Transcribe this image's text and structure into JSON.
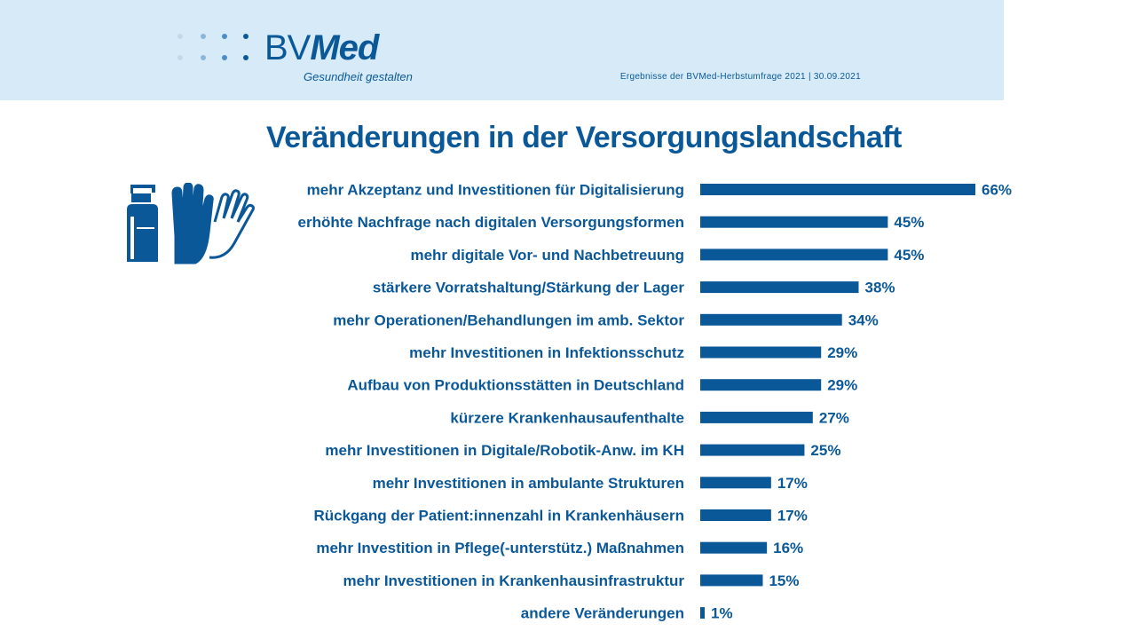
{
  "header": {
    "logo_text_regular": "BV",
    "logo_text_bold": "Med",
    "tagline": "Gesundheit gestalten",
    "meta": "Ergebnisse der BVMed-Herbstumfrage 2021 | 30.09.2021"
  },
  "colors": {
    "bar": "#0b5899",
    "text": "#0b5899",
    "header_bg": "#d6ebf7"
  },
  "icons": [
    "hand-sanitizer-icon",
    "gloves-icon"
  ],
  "chart_data": {
    "type": "bar",
    "orientation": "horizontal",
    "title": "Veränderungen  in der Versorgungslandschaft",
    "unit": "%",
    "xlim": [
      0,
      66
    ],
    "categories": [
      "mehr Akzeptanz und Investitionen für Digitalisierung",
      "erhöhte Nachfrage nach digitalen Versorgungsformen",
      "mehr digitale Vor- und Nachbetreuung",
      "stärkere Vorratshaltung/Stärkung der Lager",
      "mehr Operationen/Behandlungen im amb. Sektor",
      "mehr Investitionen in Infektionsschutz",
      "Aufbau von Produktionsstätten in Deutschland",
      "kürzere Krankenhausaufenthalte",
      "mehr Investitionen in Digitale/Robotik-Anw. im KH",
      "mehr Investitionen in ambulante Strukturen",
      "Rückgang der Patient:innenzahl in Krankenhäusern",
      "mehr Investition in Pflege(-unterstütz.) Maßnahmen",
      "mehr Investitionen in Krankenhausinfrastruktur",
      "andere Veränderungen"
    ],
    "values": [
      66,
      45,
      45,
      38,
      34,
      29,
      29,
      27,
      25,
      17,
      17,
      16,
      15,
      1
    ],
    "value_labels": [
      "66%",
      "45%",
      "45%",
      "38%",
      "34%",
      "29%",
      "29%",
      "27%",
      "25%",
      "17%",
      "17%",
      "16%",
      "15%",
      "1%"
    ]
  }
}
